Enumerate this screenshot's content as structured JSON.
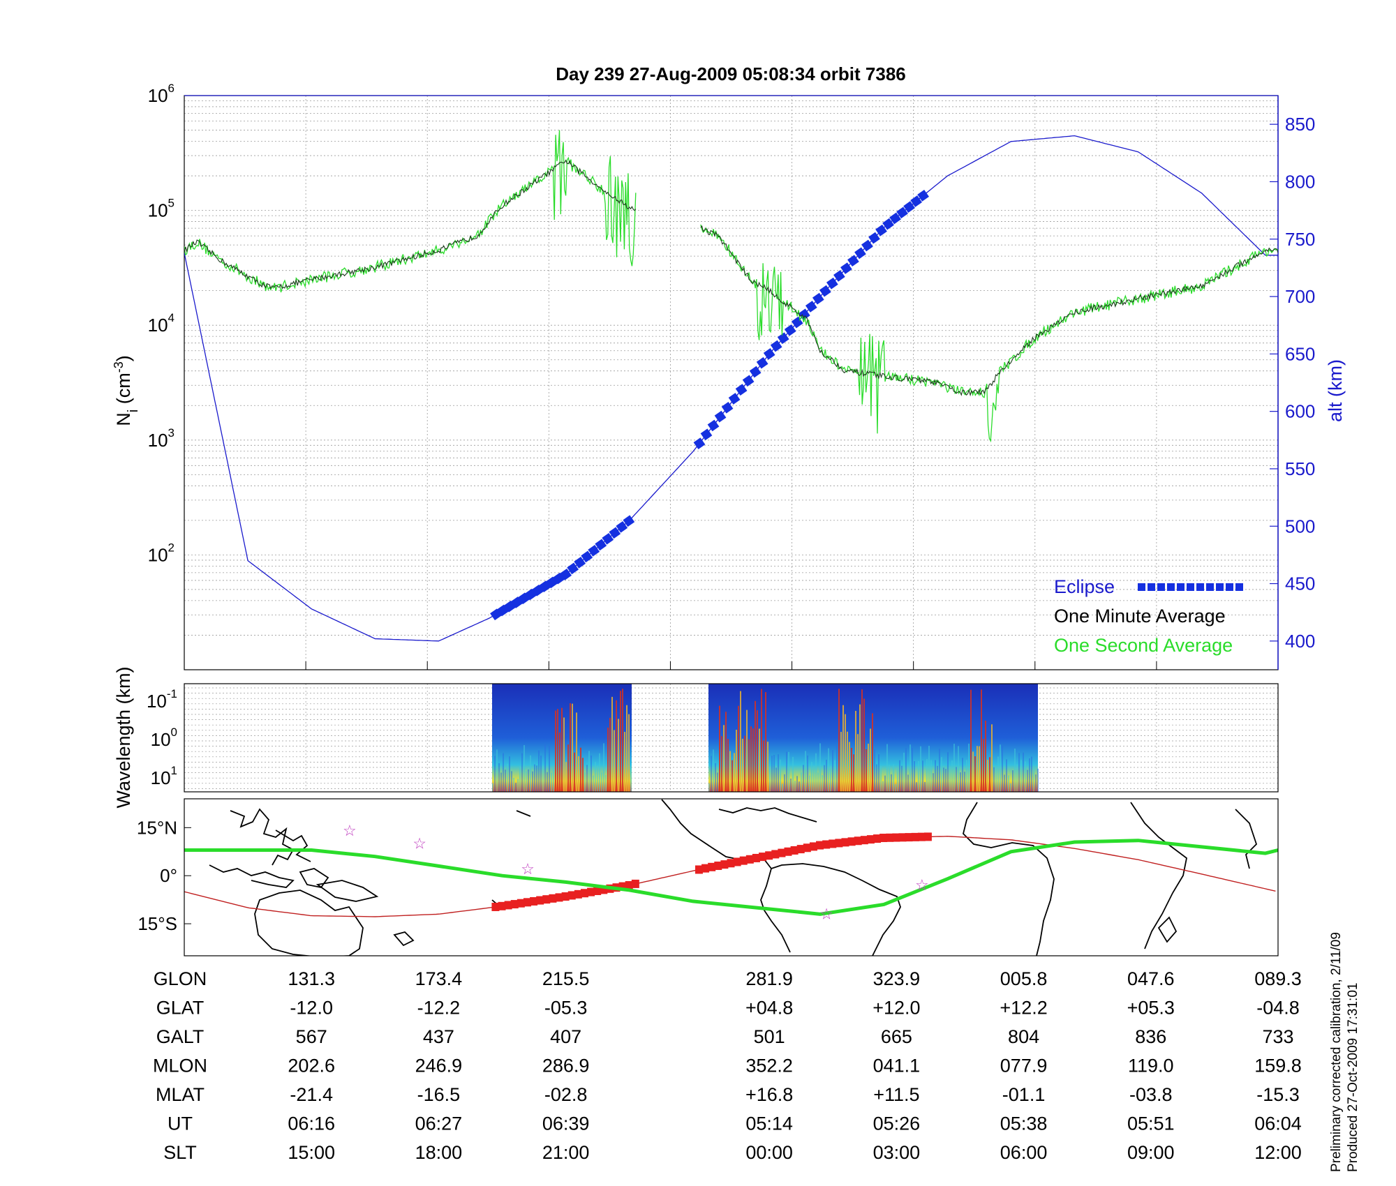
{
  "chart_data": {
    "type": "line",
    "title": "Day 239  27-Aug-2009 05:08:34   orbit 7386",
    "ylabel_left": {
      "main": "N",
      "sub": "i",
      "unit_open": " (cm",
      "unit_exp": "-3",
      "unit_close": ")"
    },
    "ylabel_right": "alt (km)",
    "yscale_left": "log",
    "ylim_left": [
      10,
      1000000
    ],
    "ylim_right": [
      375,
      875
    ],
    "left_ticks": [
      {
        "base": "10",
        "exp": "2",
        "value": 100
      },
      {
        "base": "10",
        "exp": "3",
        "value": 1000
      },
      {
        "base": "10",
        "exp": "4",
        "value": 10000
      },
      {
        "base": "10",
        "exp": "5",
        "value": 100000
      },
      {
        "base": "10",
        "exp": "6",
        "value": 1000000
      }
    ],
    "right_ticks": [
      400,
      450,
      500,
      550,
      600,
      650,
      700,
      750,
      800,
      850
    ],
    "x_ticks_count": 9,
    "grid": true,
    "legend_position": "bottom-right",
    "legend": [
      {
        "label": "Eclipse",
        "color": "#1a1acc"
      },
      {
        "label": "One Minute Average",
        "color": "#000000"
      },
      {
        "label": "One Second Average",
        "color": "#2adc2a"
      }
    ],
    "series": [
      {
        "name": "Eclipse",
        "kind": "altitude",
        "points": [
          [
            0.0,
            738
          ],
          [
            0.5,
            470
          ],
          [
            1.0,
            428
          ],
          [
            1.5,
            402
          ],
          [
            2.0,
            400
          ],
          [
            2.4,
            420
          ],
          [
            3.0,
            458
          ],
          [
            3.5,
            505
          ],
          [
            4.0,
            565
          ],
          [
            4.6,
            650
          ],
          [
            5.0,
            700
          ],
          [
            5.5,
            760
          ],
          [
            6.0,
            805
          ],
          [
            6.5,
            835
          ],
          [
            7.0,
            840
          ],
          [
            7.5,
            826
          ],
          [
            8.0,
            790
          ],
          [
            8.5,
            736
          ]
        ],
        "eclipse_ranges": [
          [
            2.45,
            3.55
          ],
          [
            4.05,
            5.85
          ]
        ]
      },
      {
        "name": "One Minute Average",
        "kind": "density",
        "points": [
          [
            0.0,
            45000
          ],
          [
            0.1,
            53000
          ],
          [
            0.3,
            36000
          ],
          [
            0.6,
            23000
          ],
          [
            0.7,
            21000
          ],
          [
            1.0,
            25000
          ],
          [
            1.5,
            32000
          ],
          [
            2.0,
            45000
          ],
          [
            2.3,
            60000
          ],
          [
            2.5,
            110000
          ],
          [
            2.8,
            190000
          ],
          [
            3.0,
            270000
          ],
          [
            3.3,
            150000
          ],
          [
            3.6,
            90000
          ],
          [
            3.8,
            70000
          ],
          [
            4.0,
            75000
          ],
          [
            4.2,
            60000
          ],
          [
            4.45,
            25000
          ],
          [
            4.6,
            20000
          ],
          [
            4.9,
            11000
          ],
          [
            5.0,
            6000
          ],
          [
            5.2,
            4000
          ],
          [
            5.6,
            3500
          ],
          [
            5.9,
            3200
          ],
          [
            6.1,
            2600
          ],
          [
            6.3,
            2600
          ],
          [
            6.4,
            3800
          ],
          [
            6.7,
            8000
          ],
          [
            7.0,
            13000
          ],
          [
            7.5,
            17000
          ],
          [
            8.0,
            22000
          ],
          [
            8.5,
            45000
          ]
        ],
        "gap": [
          3.55,
          4.05
        ]
      },
      {
        "name": "One Second Average",
        "kind": "density",
        "noise": [
          [
            2.9,
            3.0
          ],
          [
            3.3,
            3.7
          ],
          [
            4.5,
            4.7
          ],
          [
            5.3,
            5.5
          ],
          [
            6.3,
            6.4
          ]
        ]
      }
    ],
    "spectrogram": {
      "ylabel": "Wavelength (km)",
      "ticks": [
        {
          "base": "10",
          "exp": "-1"
        },
        {
          "base": "10",
          "exp": "0"
        },
        {
          "base": "10",
          "exp": "1"
        }
      ],
      "blocks": [
        [
          2.42,
          3.52
        ],
        [
          4.02,
          6.62
        ]
      ]
    },
    "map": {
      "lat_ticks": [
        "15°N",
        "0°",
        "15°S"
      ],
      "lat_values": [
        15,
        0,
        -15
      ],
      "lat_range": [
        -25,
        24
      ],
      "geographic_track": [
        [
          0,
          -5
        ],
        [
          0.5,
          -10
        ],
        [
          1.0,
          -12.5
        ],
        [
          1.5,
          -12.8
        ],
        [
          2.0,
          -12.0
        ],
        [
          2.5,
          -9.5
        ],
        [
          3.0,
          -6.5
        ],
        [
          3.5,
          -3
        ],
        [
          4.0,
          1.5
        ],
        [
          4.5,
          5.5
        ],
        [
          5.0,
          9.5
        ],
        [
          5.5,
          11.8
        ],
        [
          6.0,
          12.3
        ],
        [
          6.5,
          11.2
        ],
        [
          7.0,
          8.5
        ],
        [
          7.5,
          5.0
        ],
        [
          8.0,
          0.5
        ],
        [
          8.6,
          -5
        ]
      ],
      "magnetic_equator": [
        [
          0,
          8
        ],
        [
          1.0,
          8
        ],
        [
          1.5,
          6
        ],
        [
          2.0,
          3
        ],
        [
          2.5,
          0
        ],
        [
          3.0,
          -2
        ],
        [
          3.5,
          -4.5
        ],
        [
          4.0,
          -8
        ],
        [
          4.5,
          -10
        ],
        [
          5.0,
          -12
        ],
        [
          5.5,
          -9
        ],
        [
          6.0,
          -1
        ],
        [
          6.5,
          7.5
        ],
        [
          7.0,
          10.5
        ],
        [
          7.5,
          11.0
        ],
        [
          8.0,
          9
        ],
        [
          8.5,
          7
        ],
        [
          8.6,
          8
        ]
      ],
      "eclipse_ranges": [
        [
          2.45,
          3.55
        ],
        [
          4.05,
          5.85
        ]
      ],
      "stars": [
        [
          1.3,
          14
        ],
        [
          1.85,
          10
        ],
        [
          2.7,
          2
        ],
        [
          5.05,
          -12
        ],
        [
          5.8,
          -3
        ]
      ]
    }
  },
  "table": {
    "row_labels": [
      "GLON",
      "GLAT",
      "GALT",
      "MLON",
      "MLAT",
      "UT",
      "SLT"
    ],
    "columns": [
      {
        "x": 1,
        "values": [
          "131.3",
          "-12.0",
          "567",
          "202.6",
          "-21.4",
          "06:16",
          "15:00"
        ]
      },
      {
        "x": 2,
        "values": [
          "173.4",
          "-12.2",
          "437",
          "246.9",
          "-16.5",
          "06:27",
          "18:00"
        ]
      },
      {
        "x": 3,
        "values": [
          "215.5",
          "-05.3",
          "407",
          "286.9",
          "-02.8",
          "06:39",
          "21:00"
        ]
      },
      {
        "x": 4.6,
        "values": [
          "281.9",
          "+04.8",
          "501",
          "352.2",
          "+16.8",
          "05:14",
          "00:00"
        ]
      },
      {
        "x": 5.6,
        "values": [
          "323.9",
          "+12.0",
          "665",
          "041.1",
          "+11.5",
          "05:26",
          "03:00"
        ]
      },
      {
        "x": 6.6,
        "values": [
          "005.8",
          "+12.2",
          "804",
          "077.9",
          "-01.1",
          "05:38",
          "06:00"
        ]
      },
      {
        "x": 7.6,
        "values": [
          "047.6",
          "+05.3",
          "836",
          "119.0",
          "-03.8",
          "05:51",
          "09:00"
        ]
      },
      {
        "x": 8.6,
        "values": [
          "089.3",
          "-04.8",
          "733",
          "159.8",
          "-15.3",
          "06:04",
          "12:00"
        ]
      }
    ]
  },
  "footnote": {
    "line1": "Preliminary corrected calibration, 2/11/09",
    "line2": "Produced 27-Oct-2009 17:31:01"
  }
}
